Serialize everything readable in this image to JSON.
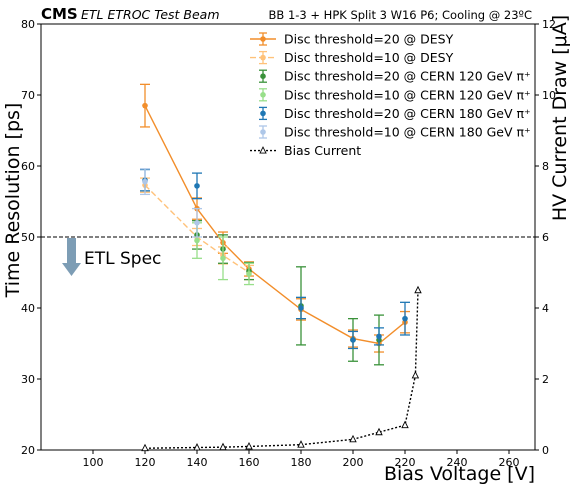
{
  "chart_data": {
    "type": "line",
    "header": {
      "logo": "CMS",
      "subtitle": "ETL ETROC Test Beam",
      "right": "BB 1-3 + HPK Split 3 W16 P6; Cooling @ 23ºC"
    },
    "xlabel": "Bias Voltage [V]",
    "ylabel": "Time Resolution [ps]",
    "y2label": "HV Current Draw [μA]",
    "xlim": [
      80,
      270
    ],
    "ylim": [
      20,
      80
    ],
    "y2lim": [
      0,
      12
    ],
    "xticks": [
      "100",
      "120",
      "140",
      "160",
      "180",
      "200",
      "220",
      "240",
      "260"
    ],
    "yticks": [
      "20",
      "30",
      "40",
      "50",
      "60",
      "70",
      "80"
    ],
    "y2ticks": [
      "0",
      "2",
      "4",
      "6",
      "8",
      "10",
      "12"
    ],
    "spec_line": {
      "y": 50,
      "label": "ETL Spec"
    },
    "legend_position": "top-right",
    "series": [
      {
        "name": "Disc threshold=20 @ DESY",
        "color": "#f28e2b",
        "style": "solid",
        "points": [
          [
            120,
            68.5,
            3.0
          ],
          [
            140,
            54.0,
            1.5
          ],
          [
            150,
            49.2,
            1.5
          ],
          [
            160,
            45.5,
            1.0
          ],
          [
            180,
            39.8,
            1.5
          ],
          [
            200,
            35.7,
            1.2
          ],
          [
            210,
            35.0,
            1.2
          ],
          [
            220,
            38.0,
            1.5
          ]
        ]
      },
      {
        "name": "Disc threshold=10 @ DESY",
        "color": "#ffc27a",
        "style": "dashed",
        "points": [
          [
            120,
            57.3,
            1.0
          ],
          [
            140,
            50.0,
            1.2
          ],
          [
            150,
            47.4,
            1.2
          ],
          [
            160,
            45.0,
            1.0
          ]
        ]
      },
      {
        "name": "Disc threshold=20 @ CERN 120 GeV π⁺",
        "color": "#3a923a",
        "style": "none",
        "points": [
          [
            140,
            50.3,
            2.0
          ],
          [
            150,
            48.3,
            2.0
          ],
          [
            160,
            45.2,
            1.2
          ],
          [
            180,
            40.3,
            5.5
          ],
          [
            200,
            35.5,
            3.0
          ],
          [
            210,
            35.5,
            3.5
          ]
        ]
      },
      {
        "name": "Disc threshold=10 @ CERN 120 GeV π⁺",
        "color": "#98df8a",
        "style": "none",
        "points": [
          [
            140,
            49.5,
            2.5
          ],
          [
            150,
            47.0,
            3.0
          ],
          [
            160,
            44.8,
            1.5
          ]
        ]
      },
      {
        "name": "Disc threshold=20 @ CERN 180 GeV π⁺",
        "color": "#1f77b4",
        "style": "none",
        "points": [
          [
            120,
            58.0,
            1.5
          ],
          [
            140,
            57.2,
            1.8
          ],
          [
            180,
            40.0,
            1.5
          ],
          [
            200,
            35.5,
            1.2
          ],
          [
            210,
            36.0,
            1.2
          ],
          [
            220,
            38.5,
            2.3
          ]
        ]
      },
      {
        "name": "Disc threshold=10 @ CERN 180 GeV π⁺",
        "color": "#aec7e8",
        "style": "none",
        "points": [
          [
            120,
            57.8,
            1.8
          ],
          [
            140,
            52.0,
            2.0
          ]
        ]
      },
      {
        "name": "Bias Current",
        "color": "#000000",
        "style": "dotted",
        "axis": "right",
        "marker": "triangle",
        "points": [
          [
            120,
            0.05
          ],
          [
            140,
            0.07
          ],
          [
            150,
            0.08
          ],
          [
            160,
            0.1
          ],
          [
            180,
            0.15
          ],
          [
            200,
            0.3
          ],
          [
            210,
            0.5
          ],
          [
            220,
            0.7
          ],
          [
            224,
            2.1
          ],
          [
            225,
            4.5
          ]
        ]
      }
    ]
  }
}
